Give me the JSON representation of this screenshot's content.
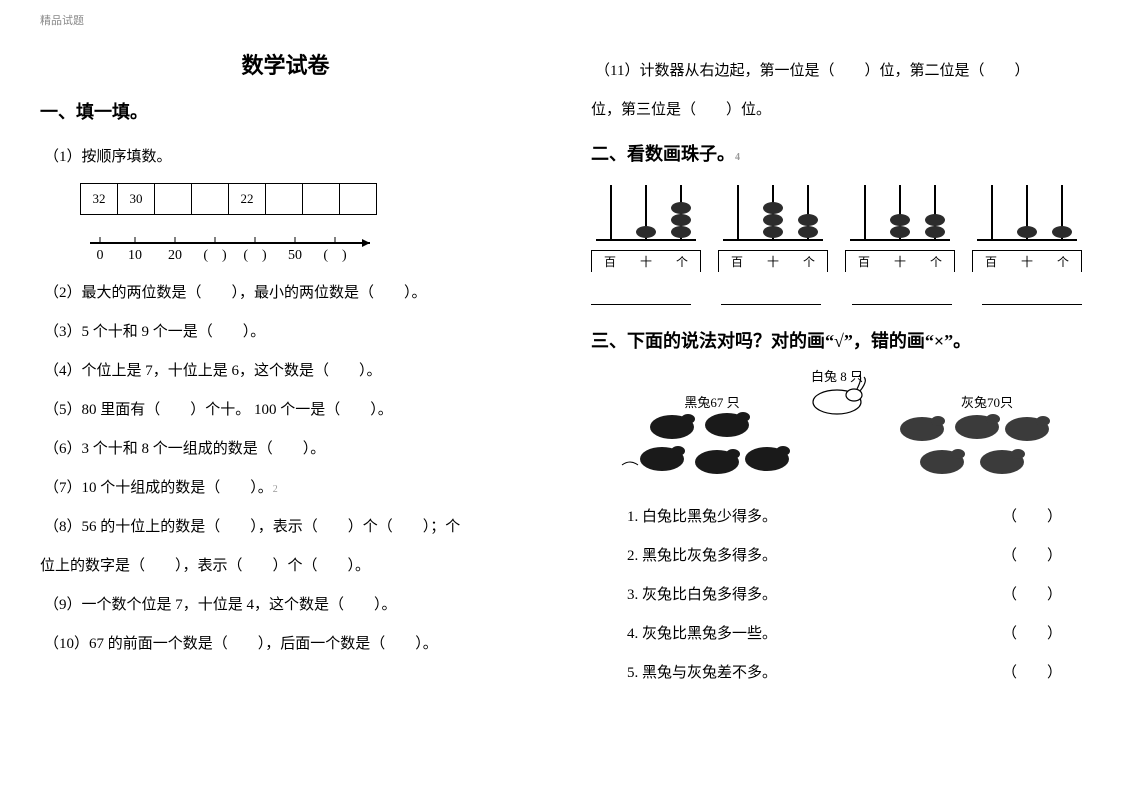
{
  "header_tiny": "精品试题",
  "title": "数学试卷",
  "sec1": "一、填一填。",
  "q1": "（1）按顺序填数。",
  "seq_cells": [
    "32",
    "30",
    "",
    "",
    "22",
    "",
    "",
    ""
  ],
  "numline_labels": [
    "0",
    "10",
    "20",
    "(　)",
    "(　)",
    "50",
    "(　)"
  ],
  "q2": "（2）最大的两位数是（　　），最小的两位数是（　　）。",
  "q3": "（3）5 个十和 9 个一是（　　）。",
  "q4": "（4）个位上是 7，十位上是 6，这个数是（　　）。",
  "q5": "（5）80 里面有（　　）个十。 100 个一是（　　）。",
  "q6": "（6）3 个十和 8 个一组成的数是（　　）。",
  "q7": "（7）10 个十组成的数是（　　）。",
  "q8a": "（8）56 的十位上的数是（　　），表示（　　）个（　　）；个",
  "q8b": "位上的数字是（　　），表示（　　）个（　　）。",
  "q9": "（9）一个数个位是 7，十位是 4，这个数是（　　）。",
  "q10": "（10）67 的前面一个数是（　　），后面一个数是（　　）。",
  "q11a": "（11）计数器从右边起，第一位是（　　）位，第二位是（　　）",
  "q11b": "位，第三位是（　　）位。",
  "sec2": "二、看数画珠子。",
  "abacus_col_labels": [
    "百",
    "十",
    "个"
  ],
  "abacus_data": [
    {
      "beads": [
        0,
        1,
        3
      ]
    },
    {
      "beads": [
        0,
        3,
        2
      ]
    },
    {
      "beads": [
        0,
        2,
        2
      ]
    },
    {
      "beads": [
        0,
        1,
        1
      ]
    }
  ],
  "bead_color": "#2c2c2c",
  "sec3": "三、下面的说法对吗？对的画“√”，错的画“×”。",
  "rabbit_labels": {
    "white": "白兔 8 只",
    "black": "黑兔67 只",
    "grey": "灰兔70只"
  },
  "tf": [
    "1. 白兔比黑兔少得多。",
    "2. 黑兔比灰兔多得多。",
    "3. 灰兔比白兔多得多。",
    "4. 灰兔比黑兔多一些。",
    "5. 黑兔与灰兔差不多。"
  ],
  "tf_blank": "（　　）"
}
